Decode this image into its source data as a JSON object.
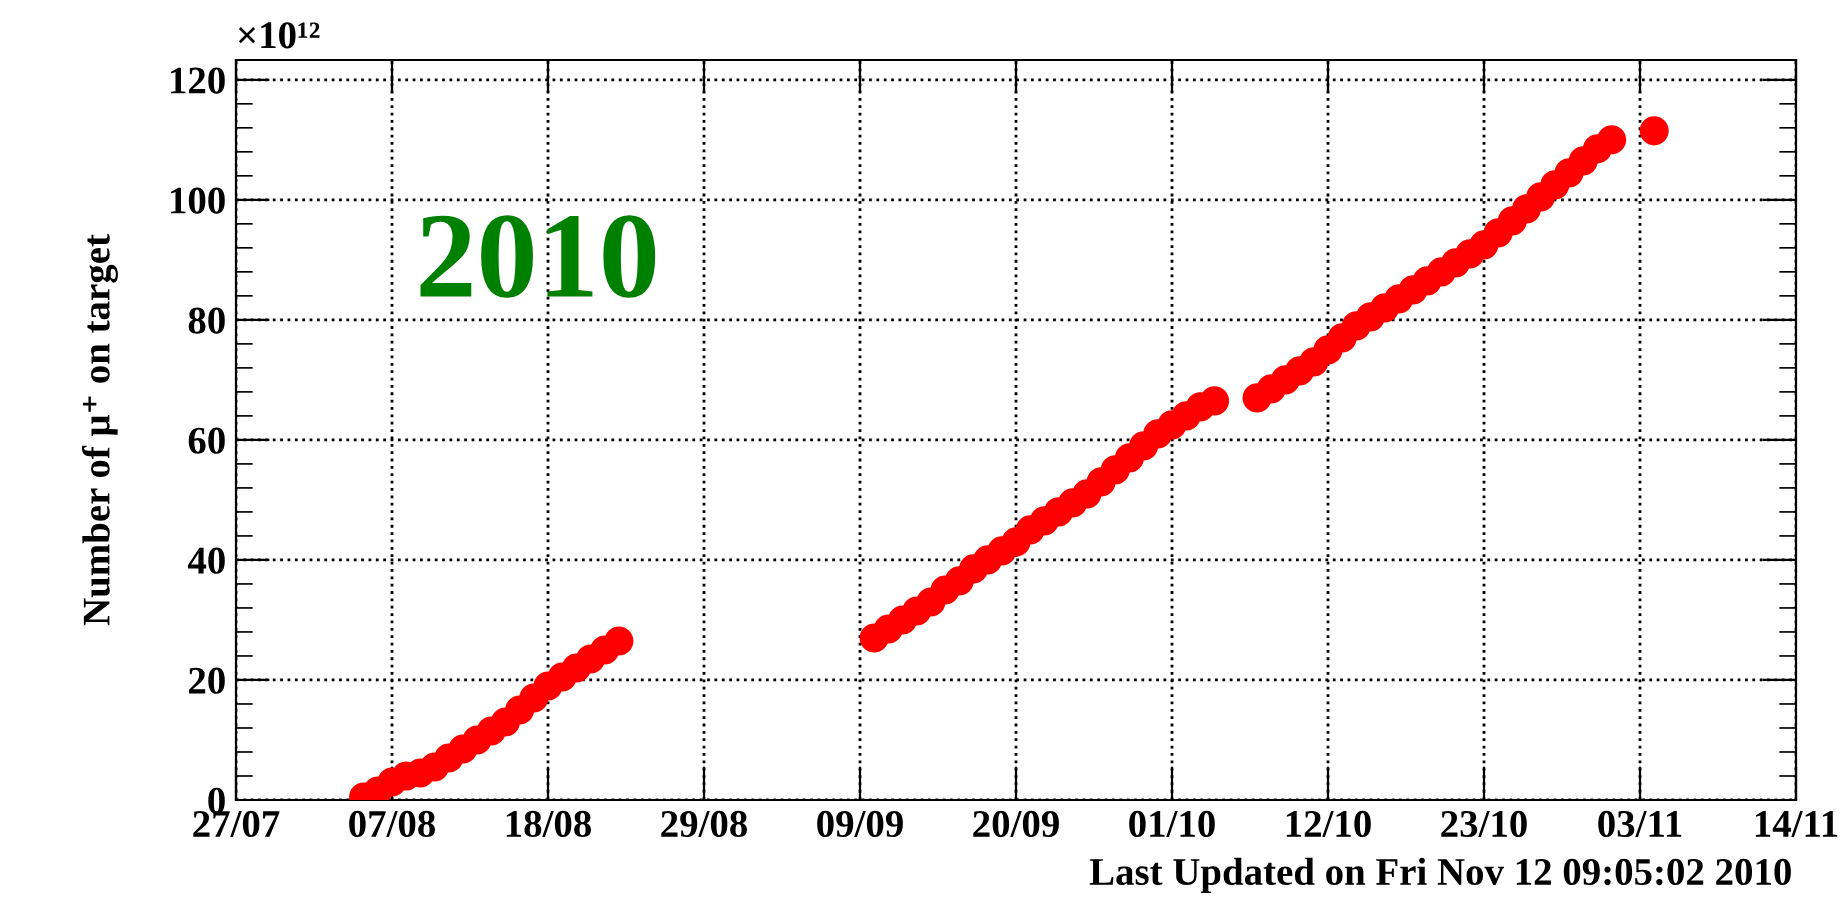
{
  "chart_data": {
    "type": "scatter",
    "ylabel": "Number of μ⁺ on target",
    "annotations": [
      "×10¹²",
      "2010",
      "Last Updated on Fri Nov 12 09:05:02 2010"
    ],
    "x": [
      "2010-08-05",
      "2010-08-06",
      "2010-08-07",
      "2010-08-08",
      "2010-08-09",
      "2010-08-10",
      "2010-08-11",
      "2010-08-12",
      "2010-08-13",
      "2010-08-14",
      "2010-08-15",
      "2010-08-16",
      "2010-08-17",
      "2010-08-18",
      "2010-08-19",
      "2010-08-20",
      "2010-08-21",
      "2010-08-22",
      "2010-08-23",
      "2010-09-10",
      "2010-09-11",
      "2010-09-12",
      "2010-09-13",
      "2010-09-14",
      "2010-09-15",
      "2010-09-16",
      "2010-09-17",
      "2010-09-18",
      "2010-09-19",
      "2010-09-20",
      "2010-09-21",
      "2010-09-22",
      "2010-09-23",
      "2010-09-24",
      "2010-09-25",
      "2010-09-26",
      "2010-09-27",
      "2010-09-28",
      "2010-09-29",
      "2010-09-30",
      "2010-10-01",
      "2010-10-02",
      "2010-10-03",
      "2010-10-04",
      "2010-10-07",
      "2010-10-08",
      "2010-10-09",
      "2010-10-10",
      "2010-10-11",
      "2010-10-12",
      "2010-10-13",
      "2010-10-14",
      "2010-10-15",
      "2010-10-16",
      "2010-10-17",
      "2010-10-18",
      "2010-10-19",
      "2010-10-20",
      "2010-10-21",
      "2010-10-22",
      "2010-10-23",
      "2010-10-24",
      "2010-10-25",
      "2010-10-26",
      "2010-10-27",
      "2010-10-28",
      "2010-10-29",
      "2010-10-30",
      "2010-10-31",
      "2010-11-01",
      "2010-11-04"
    ],
    "series": [
      {
        "color": "#ff0000",
        "values": [
          0.5,
          1.5,
          3,
          4,
          4.5,
          5.5,
          7,
          8.5,
          10,
          11.5,
          13,
          15,
          17,
          19,
          20.5,
          22,
          23.5,
          25,
          26.5,
          27,
          28.5,
          30,
          31.5,
          33,
          35,
          36.5,
          38.5,
          40,
          41.5,
          43,
          45,
          46.5,
          48,
          49.5,
          51,
          53,
          55,
          57,
          59,
          61,
          62.5,
          64,
          65.5,
          66.5,
          67,
          68.5,
          70,
          71.5,
          73,
          75,
          77,
          79,
          80.5,
          82,
          83.5,
          85,
          86.5,
          88,
          89.5,
          91,
          92.5,
          94.5,
          96.5,
          98.5,
          100.5,
          102.5,
          104.5,
          106.5,
          108.5,
          110,
          111.5
        ]
      }
    ],
    "marker": "circle",
    "xlim": [
      "2010-07-27",
      "2010-11-14"
    ],
    "xticks": [
      {
        "value": "2010-07-27",
        "label": "27/07"
      },
      {
        "value": "2010-08-07",
        "label": "07/08"
      },
      {
        "value": "2010-08-18",
        "label": "18/08"
      },
      {
        "value": "2010-08-29",
        "label": "29/08"
      },
      {
        "value": "2010-09-09",
        "label": "09/09"
      },
      {
        "value": "2010-09-20",
        "label": "20/09"
      },
      {
        "value": "2010-10-01",
        "label": "01/10"
      },
      {
        "value": "2010-10-12",
        "label": "12/10"
      },
      {
        "value": "2010-10-23",
        "label": "23/10"
      },
      {
        "value": "2010-11-03",
        "label": "03/11"
      },
      {
        "value": "2010-11-14",
        "label": "14/11"
      }
    ],
    "ylim": [
      0,
      123.3
    ],
    "yticks": [
      0,
      20,
      40,
      60,
      80,
      100,
      120
    ],
    "grid": true,
    "legend": false
  }
}
